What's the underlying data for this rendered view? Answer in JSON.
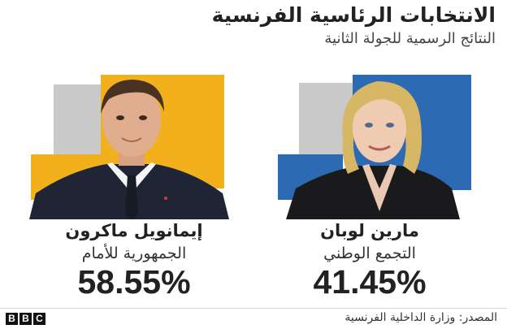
{
  "header": {
    "title": "الانتخابات الرئاسية الفرنسية",
    "subtitle": "النتائج الرسمية للجولة الثانية"
  },
  "candidates": [
    {
      "name": "إيمانويل ماكرون",
      "party": "الجمهورية للأمام",
      "percent": "58.55%",
      "accent_color": "#f2b11c",
      "shade_color": "#c9c9c9"
    },
    {
      "name": "مارين لوبان",
      "party": "التجمع الوطني",
      "percent": "41.45%",
      "accent_color": "#2c6bb3",
      "shade_color": "#c9c9c9"
    }
  ],
  "footer": {
    "logo": [
      "B",
      "B",
      "C"
    ],
    "source": "المصدر: وزارة الداخلية الفرنسية"
  }
}
